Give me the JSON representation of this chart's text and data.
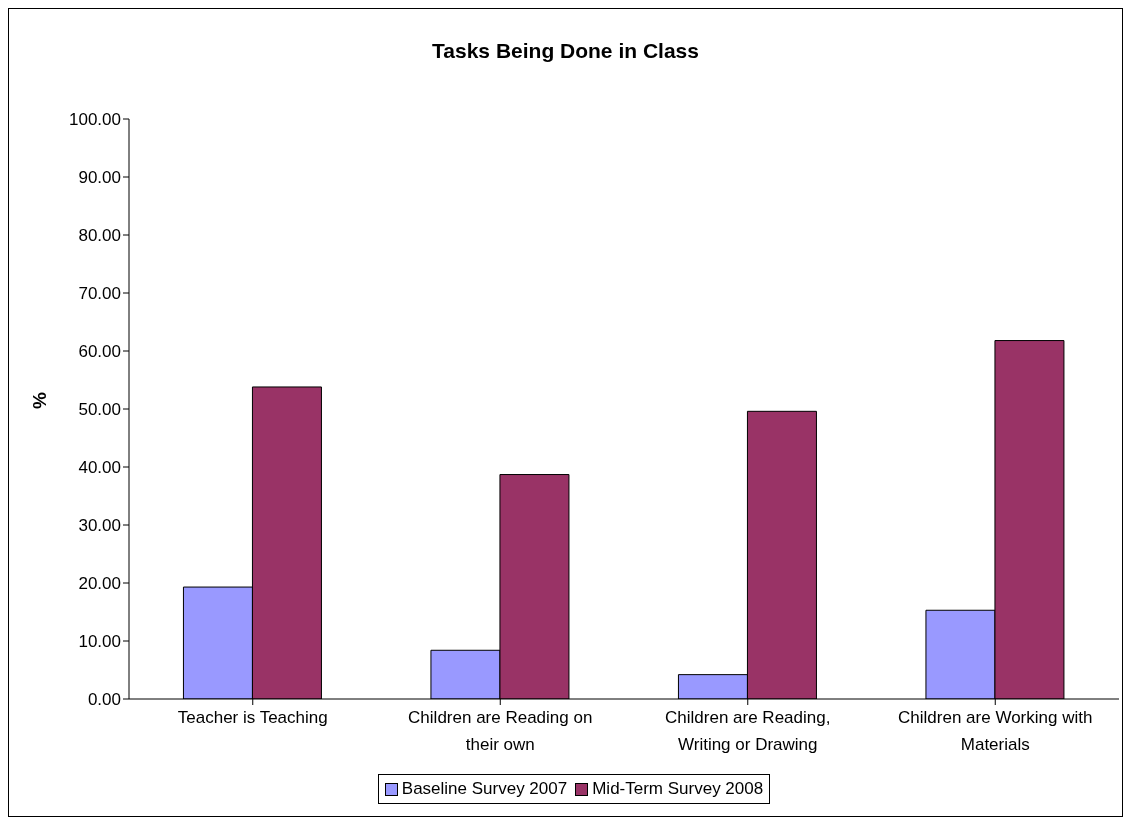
{
  "chart_data": {
    "type": "bar",
    "title": "Tasks Being Done in Class",
    "ylabel": "%",
    "categories": [
      "Teacher is Teaching",
      "Children are Reading on their own",
      "Children are Reading, Writing or Drawing",
      "Children are Working with Materials"
    ],
    "series": [
      {
        "name": "Baseline Survey 2007",
        "color": "#9999ff",
        "values": [
          19.3,
          8.4,
          4.2,
          15.3
        ]
      },
      {
        "name": "Mid-Term Survey 2008",
        "color": "#993366",
        "values": [
          53.8,
          38.7,
          49.6,
          61.8
        ]
      }
    ],
    "ylim": [
      0,
      100
    ],
    "yticks": [
      {
        "value": 0,
        "label": "0.00"
      },
      {
        "value": 10,
        "label": "10.00"
      },
      {
        "value": 20,
        "label": "20.00"
      },
      {
        "value": 30,
        "label": "30.00"
      },
      {
        "value": 40,
        "label": "40.00"
      },
      {
        "value": 50,
        "label": "50.00"
      },
      {
        "value": 60,
        "label": "60.00"
      },
      {
        "value": 70,
        "label": "70.00"
      },
      {
        "value": 80,
        "label": "80.00"
      },
      {
        "value": 90,
        "label": "90.00"
      },
      {
        "value": 100,
        "label": "100.00"
      }
    ],
    "grid": false,
    "legend": "bottom"
  }
}
